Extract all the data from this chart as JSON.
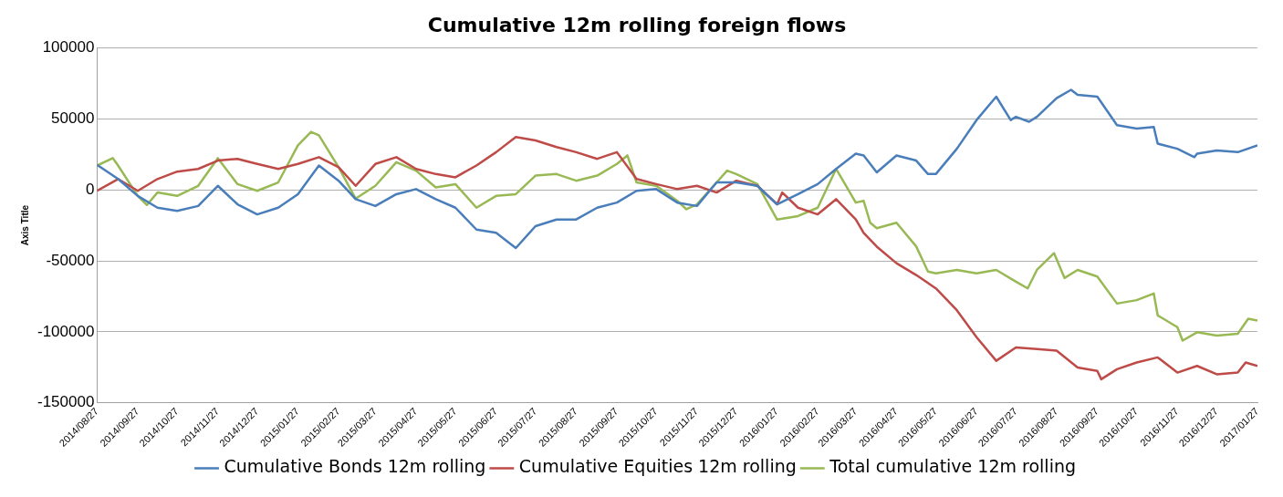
{
  "chart_data": {
    "type": "line",
    "title": "Cumulative 12m rolling foreign flows",
    "ylabel": "Axis Title",
    "xlim": [
      "2014-08-27",
      "2017-01-27"
    ],
    "xticks": [
      {
        "value": "2014-08-27",
        "label": "2014/08/27"
      },
      {
        "value": "2014-09-27",
        "label": "2014/09/27"
      },
      {
        "value": "2014-10-27",
        "label": "2014/10/27"
      },
      {
        "value": "2014-11-27",
        "label": "2014/11/27"
      },
      {
        "value": "2014-12-27",
        "label": "2014/12/27"
      },
      {
        "value": "2015-01-27",
        "label": "2015/01/27"
      },
      {
        "value": "2015-02-27",
        "label": "2015/02/27"
      },
      {
        "value": "2015-03-27",
        "label": "2015/03/27"
      },
      {
        "value": "2015-04-27",
        "label": "2015/04/27"
      },
      {
        "value": "2015-05-27",
        "label": "2015/05/27"
      },
      {
        "value": "2015-06-27",
        "label": "2015/06/27"
      },
      {
        "value": "2015-07-27",
        "label": "2015/07/27"
      },
      {
        "value": "2015-08-27",
        "label": "2015/08/27"
      },
      {
        "value": "2015-09-27",
        "label": "2015/09/27"
      },
      {
        "value": "2015-10-27",
        "label": "2015/10/27"
      },
      {
        "value": "2015-11-27",
        "label": "2015/11/27"
      },
      {
        "value": "2015-12-27",
        "label": "2015/12/27"
      },
      {
        "value": "2016-01-27",
        "label": "2016/01/27"
      },
      {
        "value": "2016-02-27",
        "label": "2016/02/27"
      },
      {
        "value": "2016-03-27",
        "label": "2016/03/27"
      },
      {
        "value": "2016-04-27",
        "label": "2016/04/27"
      },
      {
        "value": "2016-05-27",
        "label": "2016/05/27"
      },
      {
        "value": "2016-06-27",
        "label": "2016/06/27"
      },
      {
        "value": "2016-07-27",
        "label": "2016/07/27"
      },
      {
        "value": "2016-08-27",
        "label": "2016/08/27"
      },
      {
        "value": "2016-09-27",
        "label": "2016/09/27"
      },
      {
        "value": "2016-10-27",
        "label": "2016/10/27"
      },
      {
        "value": "2016-11-27",
        "label": "2016/11/27"
      },
      {
        "value": "2016-12-27",
        "label": "2016/12/27"
      },
      {
        "value": "2017-01-27",
        "label": "2017/01/27"
      }
    ],
    "ylim": [
      -150000,
      100000
    ],
    "yticks": [
      -150000,
      -100000,
      -50000,
      0,
      50000,
      100000
    ],
    "grid": "y",
    "legend": "bottom",
    "marker": "none",
    "line_style": "solid",
    "series": [
      {
        "name": "Cumulative Bonds 12m rolling",
        "color": "#4a7ebb",
        "x": [
          "2014-08-27",
          "2014-09-12",
          "2014-09-27",
          "2014-10-12",
          "2014-10-27",
          "2014-11-12",
          "2014-11-27",
          "2014-12-12",
          "2014-12-27",
          "2015-01-12",
          "2015-01-27",
          "2015-02-12",
          "2015-02-27",
          "2015-03-12",
          "2015-03-27",
          "2015-04-12",
          "2015-04-27",
          "2015-05-12",
          "2015-05-27",
          "2015-06-12",
          "2015-06-27",
          "2015-07-12",
          "2015-07-27",
          "2015-08-12",
          "2015-08-27",
          "2015-09-12",
          "2015-09-27",
          "2015-10-12",
          "2015-10-27",
          "2015-11-12",
          "2015-11-27",
          "2015-12-12",
          "2015-12-27",
          "2016-01-12",
          "2016-01-27",
          "2016-02-12",
          "2016-02-27",
          "2016-03-12",
          "2016-03-27",
          "2016-04-02",
          "2016-04-12",
          "2016-04-27",
          "2016-05-12",
          "2016-05-21",
          "2016-05-27",
          "2016-06-12",
          "2016-06-27",
          "2016-07-12",
          "2016-07-23",
          "2016-07-27",
          "2016-08-06",
          "2016-08-12",
          "2016-08-27",
          "2016-09-07",
          "2016-09-12",
          "2016-09-27",
          "2016-10-12",
          "2016-10-27",
          "2016-11-09",
          "2016-11-12",
          "2016-11-27",
          "2016-12-10",
          "2016-12-12",
          "2016-12-27",
          "2017-01-12",
          "2017-01-27"
        ],
        "values": [
          17500,
          7600,
          -4300,
          -12600,
          -14900,
          -11400,
          2800,
          -10200,
          -17300,
          -12600,
          -3100,
          17100,
          6400,
          -6600,
          -11400,
          -3100,
          500,
          -6600,
          -12600,
          -28000,
          -30300,
          -41000,
          -25600,
          -20900,
          -20900,
          -12600,
          -9000,
          -700,
          500,
          -9000,
          -11400,
          5200,
          5200,
          2800,
          -10200,
          -3100,
          4000,
          14700,
          25400,
          24200,
          12300,
          24200,
          20600,
          11100,
          11100,
          28900,
          49100,
          65600,
          49100,
          51400,
          47900,
          51400,
          64500,
          70400,
          66800,
          65600,
          45500,
          43100,
          44300,
          32500,
          28900,
          23000,
          25400,
          27700,
          26500,
          31300
        ]
      },
      {
        "name": "Cumulative Equities 12m rolling",
        "color": "#be4b48",
        "x": [
          "2014-08-27",
          "2014-09-12",
          "2014-09-27",
          "2014-10-12",
          "2014-10-27",
          "2014-11-12",
          "2014-11-27",
          "2014-12-12",
          "2014-12-27",
          "2015-01-12",
          "2015-01-27",
          "2015-02-12",
          "2015-02-27",
          "2015-03-12",
          "2015-03-27",
          "2015-04-12",
          "2015-04-27",
          "2015-05-12",
          "2015-05-27",
          "2015-06-12",
          "2015-06-27",
          "2015-07-12",
          "2015-07-27",
          "2015-08-12",
          "2015-08-27",
          "2015-09-12",
          "2015-09-27",
          "2015-10-12",
          "2015-10-27",
          "2015-11-12",
          "2015-11-27",
          "2015-12-12",
          "2015-12-27",
          "2016-01-12",
          "2016-01-27",
          "2016-01-31",
          "2016-02-12",
          "2016-02-27",
          "2016-03-12",
          "2016-03-27",
          "2016-04-02",
          "2016-04-12",
          "2016-04-27",
          "2016-05-12",
          "2016-05-27",
          "2016-06-12",
          "2016-06-27",
          "2016-07-12",
          "2016-07-27",
          "2016-08-12",
          "2016-08-27",
          "2016-09-12",
          "2016-09-27",
          "2016-09-30",
          "2016-10-12",
          "2016-10-27",
          "2016-11-12",
          "2016-11-27",
          "2016-12-12",
          "2016-12-27",
          "2017-01-12",
          "2017-01-18",
          "2017-01-27"
        ],
        "values": [
          -700,
          7600,
          -700,
          7600,
          12800,
          14700,
          20600,
          21800,
          18200,
          14700,
          18200,
          23000,
          15900,
          2800,
          18200,
          23000,
          14700,
          11100,
          8800,
          17100,
          26500,
          37200,
          34800,
          30100,
          26500,
          21800,
          26500,
          7600,
          4000,
          500,
          2800,
          -1900,
          6400,
          2800,
          -10200,
          -1900,
          -12600,
          -17300,
          -6600,
          -20900,
          -30300,
          -40000,
          -51700,
          -60000,
          -69400,
          -84800,
          -103800,
          -120400,
          -111000,
          -112100,
          -113300,
          -125100,
          -127500,
          -133400,
          -126300,
          -121600,
          -118000,
          -128700,
          -124000,
          -129900,
          -128700,
          -121600,
          -124000
        ]
      },
      {
        "name": "Total cumulative 12m rolling",
        "color": "#98b954",
        "x": [
          "2014-08-27",
          "2014-09-08",
          "2014-09-12",
          "2014-09-27",
          "2014-10-04",
          "2014-10-12",
          "2014-10-27",
          "2014-11-12",
          "2014-11-27",
          "2014-12-12",
          "2014-12-27",
          "2015-01-12",
          "2015-01-27",
          "2015-02-06",
          "2015-02-12",
          "2015-02-27",
          "2015-03-12",
          "2015-03-27",
          "2015-04-12",
          "2015-04-27",
          "2015-05-12",
          "2015-05-27",
          "2015-06-12",
          "2015-06-27",
          "2015-07-12",
          "2015-07-27",
          "2015-08-12",
          "2015-08-27",
          "2015-09-12",
          "2015-09-27",
          "2015-10-05",
          "2015-10-12",
          "2015-10-27",
          "2015-11-12",
          "2015-11-19",
          "2015-11-27",
          "2015-12-12",
          "2015-12-20",
          "2015-12-27",
          "2016-01-12",
          "2016-01-27",
          "2016-02-12",
          "2016-02-27",
          "2016-03-12",
          "2016-03-27",
          "2016-04-02",
          "2016-04-07",
          "2016-04-12",
          "2016-04-27",
          "2016-05-12",
          "2016-05-21",
          "2016-05-27",
          "2016-06-12",
          "2016-06-27",
          "2016-07-12",
          "2016-07-27",
          "2016-08-05",
          "2016-08-12",
          "2016-08-25",
          "2016-09-02",
          "2016-09-12",
          "2016-09-27",
          "2016-10-12",
          "2016-10-27",
          "2016-11-09",
          "2016-11-12",
          "2016-11-27",
          "2016-12-01",
          "2016-12-12",
          "2016-12-27",
          "2017-01-12",
          "2017-01-20",
          "2017-01-27"
        ],
        "values": [
          17100,
          22300,
          17100,
          -4300,
          -10700,
          -1900,
          -4300,
          2800,
          22300,
          4000,
          -700,
          5200,
          31300,
          40800,
          38400,
          15900,
          -6200,
          2800,
          19400,
          13500,
          1700,
          4000,
          -12600,
          -4300,
          -3100,
          10000,
          11100,
          6400,
          10000,
          18200,
          24200,
          5200,
          2800,
          -7800,
          -13700,
          -10200,
          5200,
          13500,
          11100,
          4000,
          -20900,
          -18500,
          -12600,
          14700,
          -9000,
          -7800,
          -23200,
          -27000,
          -23200,
          -39800,
          -57600,
          -58800,
          -56400,
          -58800,
          -56400,
          -64700,
          -69400,
          -56400,
          -44600,
          -62100,
          -56400,
          -61100,
          -80100,
          -77700,
          -73000,
          -88400,
          -96700,
          -106200,
          -100300,
          -102600,
          -101400,
          -90800,
          -92000
        ]
      }
    ]
  }
}
